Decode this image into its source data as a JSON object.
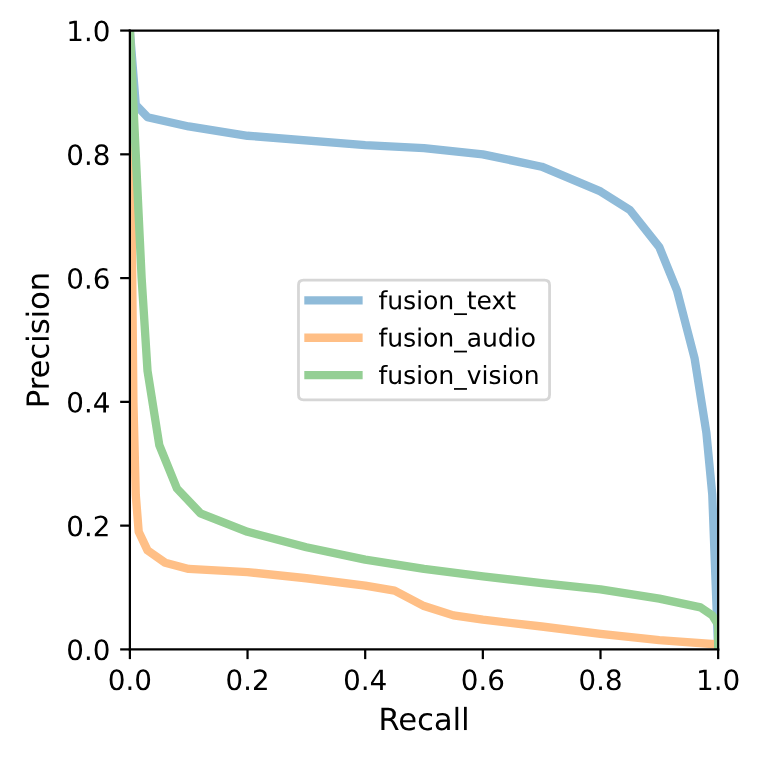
{
  "chart_data": {
    "type": "line",
    "xlabel": "Recall",
    "ylabel": "Precision",
    "xlim": [
      0,
      1
    ],
    "ylim": [
      0,
      1
    ],
    "xticks": [
      {
        "value": 0,
        "label": "0.0"
      },
      0.2,
      0.4,
      0.6,
      0.8,
      {
        "value": 1,
        "label": "1.0"
      }
    ],
    "yticks": [
      {
        "value": 0,
        "label": "0.0"
      },
      0.2,
      0.4,
      0.6,
      0.8,
      {
        "value": 1,
        "label": "1.0"
      }
    ],
    "grid": false,
    "legend": "center",
    "marker": "none",
    "line_style": "solid",
    "series": [
      {
        "name": "fusion_text",
        "color": "#8fbbd9",
        "x": [
          0,
          0.01,
          0.03,
          0.1,
          0.2,
          0.4,
          0.5,
          0.6,
          0.7,
          0.8,
          0.85,
          0.9,
          0.93,
          0.96,
          0.98,
          0.99,
          1.0
        ],
        "values": [
          1.0,
          0.88,
          0.86,
          0.845,
          0.83,
          0.815,
          0.81,
          0.8,
          0.78,
          0.74,
          0.71,
          0.65,
          0.58,
          0.47,
          0.35,
          0.25,
          0.0
        ]
      },
      {
        "name": "fusion_audio",
        "color": "#ffbf86",
        "x": [
          0,
          0.003,
          0.006,
          0.01,
          0.015,
          0.03,
          0.06,
          0.1,
          0.2,
          0.3,
          0.4,
          0.45,
          0.5,
          0.55,
          0.6,
          0.7,
          0.8,
          0.9,
          1.0
        ],
        "values": [
          1.0,
          0.7,
          0.4,
          0.25,
          0.19,
          0.16,
          0.14,
          0.13,
          0.125,
          0.115,
          0.103,
          0.095,
          0.07,
          0.055,
          0.048,
          0.037,
          0.025,
          0.015,
          0.008
        ]
      },
      {
        "name": "fusion_vision",
        "color": "#94cf94",
        "x": [
          0,
          0.01,
          0.02,
          0.03,
          0.05,
          0.08,
          0.12,
          0.2,
          0.3,
          0.4,
          0.5,
          0.6,
          0.7,
          0.8,
          0.9,
          0.97,
          0.99,
          1.0,
          1.0
        ],
        "values": [
          1.0,
          0.8,
          0.6,
          0.45,
          0.33,
          0.26,
          0.22,
          0.19,
          0.165,
          0.145,
          0.13,
          0.118,
          0.107,
          0.097,
          0.082,
          0.068,
          0.055,
          0.04,
          0.0
        ]
      }
    ]
  }
}
